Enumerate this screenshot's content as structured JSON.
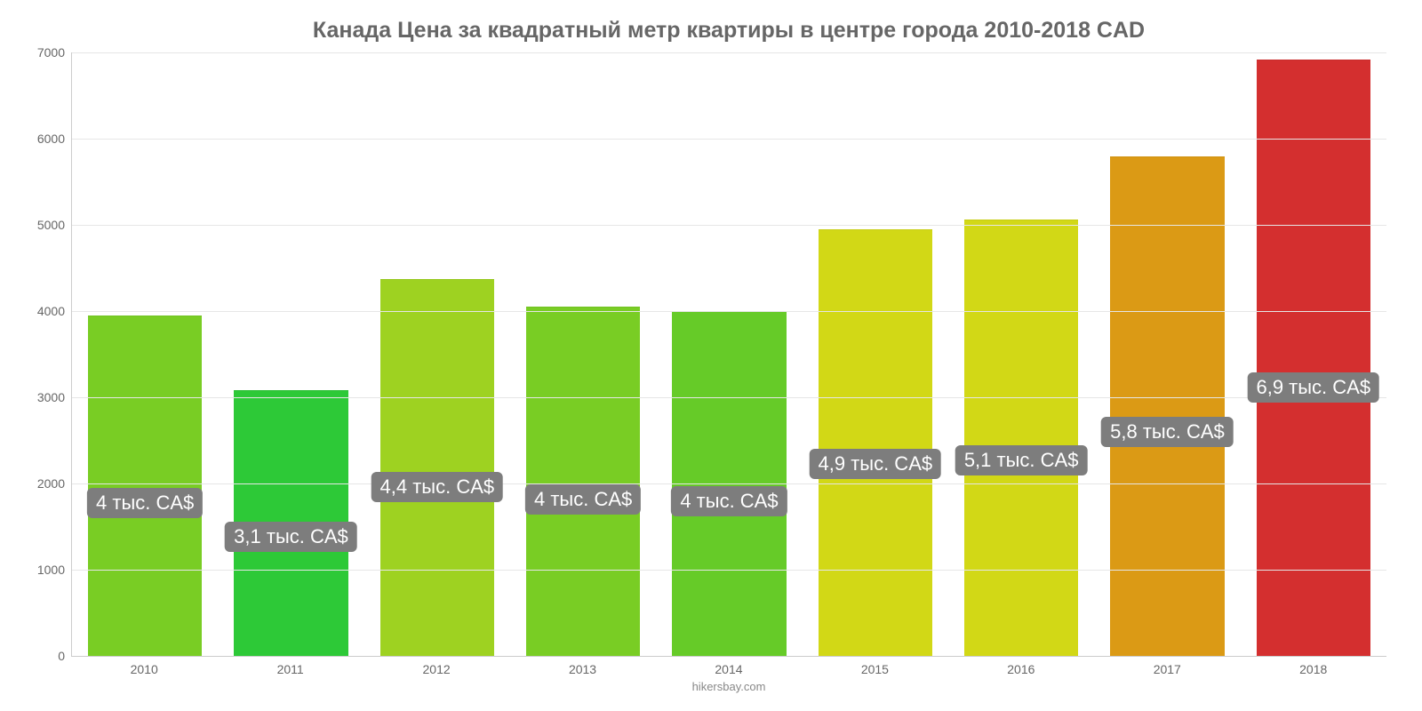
{
  "chart": {
    "type": "bar",
    "title": "Канада Цена за квадратный метр квартиры в центре города 2010-2018 CAD",
    "title_color": "#666666",
    "title_fontsize": 25,
    "background_color": "#ffffff",
    "grid_color": "#e6e6e6",
    "axis_color": "#cccccc",
    "tick_label_color": "#666666",
    "tick_fontsize": 14,
    "ylim": [
      0,
      7000
    ],
    "yticks": [
      0,
      1000,
      2000,
      3000,
      4000,
      5000,
      6000,
      7000
    ],
    "ytick_labels": [
      "0",
      "1000",
      "2000",
      "3000",
      "4000",
      "5000",
      "6000",
      "7000"
    ],
    "categories": [
      "2010",
      "2011",
      "2012",
      "2013",
      "2014",
      "2015",
      "2016",
      "2017",
      "2018"
    ],
    "values": [
      3950,
      3080,
      4370,
      4050,
      4000,
      4950,
      5060,
      5790,
      6920
    ],
    "bar_colors": [
      "#79cd24",
      "#2dc937",
      "#9ed221",
      "#79cd24",
      "#66cb28",
      "#d2d816",
      "#d2d816",
      "#db9a15",
      "#d42f2f"
    ],
    "bar_width": 0.78,
    "value_labels": [
      "4 тыс. CA$",
      "3,1 тыс. CA$",
      "4,4 тыс. CA$",
      "4 тыс. CA$",
      "4 тыс. CA$",
      "4,9 тыс. CA$",
      "5,1 тыс. CA$",
      "5,8 тыс. CA$",
      "6,9 тыс. CA$"
    ],
    "value_label_bg": "#7d7d7d",
    "value_label_color": "#ffffff",
    "value_label_fontsize": 22,
    "credit": "hikersbay.com",
    "credit_color": "#888888",
    "credit_fontsize": 13
  }
}
